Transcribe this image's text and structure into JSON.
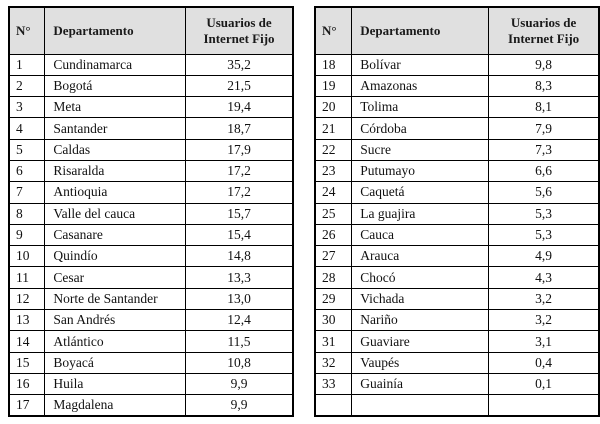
{
  "page": {
    "background": "#ffffff",
    "border_color": "#000000",
    "header_background": "#e0e0e0",
    "text_color": "#111111"
  },
  "tables": [
    {
      "name": "departments-1-17",
      "columns": [
        "N°",
        "Departamento",
        "Usuarios de Internet Fijo"
      ],
      "rows": [
        {
          "num": "1",
          "dept": "Cundinamarca",
          "value": "35,2"
        },
        {
          "num": "2",
          "dept": "Bogotá",
          "value": "21,5"
        },
        {
          "num": "3",
          "dept": "Meta",
          "value": "19,4"
        },
        {
          "num": "4",
          "dept": "Santander",
          "value": "18,7"
        },
        {
          "num": "5",
          "dept": "Caldas",
          "value": "17,9"
        },
        {
          "num": "6",
          "dept": "Risaralda",
          "value": "17,2"
        },
        {
          "num": "7",
          "dept": "Antioquia",
          "value": "17,2"
        },
        {
          "num": "8",
          "dept": "Valle del cauca",
          "value": "15,7"
        },
        {
          "num": "9",
          "dept": "Casanare",
          "value": "15,4"
        },
        {
          "num": "10",
          "dept": "Quindío",
          "value": "14,8"
        },
        {
          "num": "11",
          "dept": "Cesar",
          "value": "13,3"
        },
        {
          "num": "12",
          "dept": "Norte de Santander",
          "value": "13,0"
        },
        {
          "num": "13",
          "dept": "San Andrés",
          "value": "12,4"
        },
        {
          "num": "14",
          "dept": "Atlántico",
          "value": "11,5"
        },
        {
          "num": "15",
          "dept": "Boyacá",
          "value": "10,8"
        },
        {
          "num": "16",
          "dept": "Huila",
          "value": "9,9"
        },
        {
          "num": "17",
          "dept": "Magdalena",
          "value": "9,9"
        }
      ]
    },
    {
      "name": "departments-18-33",
      "columns": [
        "N°",
        "Departamento",
        "Usuarios de Internet Fijo"
      ],
      "rows": [
        {
          "num": "18",
          "dept": "Bolívar",
          "value": "9,8"
        },
        {
          "num": "19",
          "dept": "Amazonas",
          "value": "8,3"
        },
        {
          "num": "20",
          "dept": "Tolima",
          "value": "8,1"
        },
        {
          "num": "21",
          "dept": "Córdoba",
          "value": "7,9"
        },
        {
          "num": "22",
          "dept": "Sucre",
          "value": "7,3"
        },
        {
          "num": "23",
          "dept": "Putumayo",
          "value": "6,6"
        },
        {
          "num": "24",
          "dept": "Caquetá",
          "value": "5,6"
        },
        {
          "num": "25",
          "dept": "La guajira",
          "value": "5,3"
        },
        {
          "num": "26",
          "dept": "Cauca",
          "value": "5,3"
        },
        {
          "num": "27",
          "dept": "Arauca",
          "value": "4,9"
        },
        {
          "num": "28",
          "dept": "Chocó",
          "value": "4,3"
        },
        {
          "num": "29",
          "dept": "Vichada",
          "value": "3,2"
        },
        {
          "num": "30",
          "dept": "Nariño",
          "value": "3,2"
        },
        {
          "num": "31",
          "dept": "Guaviare",
          "value": "3,1"
        },
        {
          "num": "32",
          "dept": "Vaupés",
          "value": "0,4"
        },
        {
          "num": "33",
          "dept": "Guainía",
          "value": "0,1"
        },
        {
          "num": "",
          "dept": "",
          "value": ""
        }
      ]
    }
  ]
}
